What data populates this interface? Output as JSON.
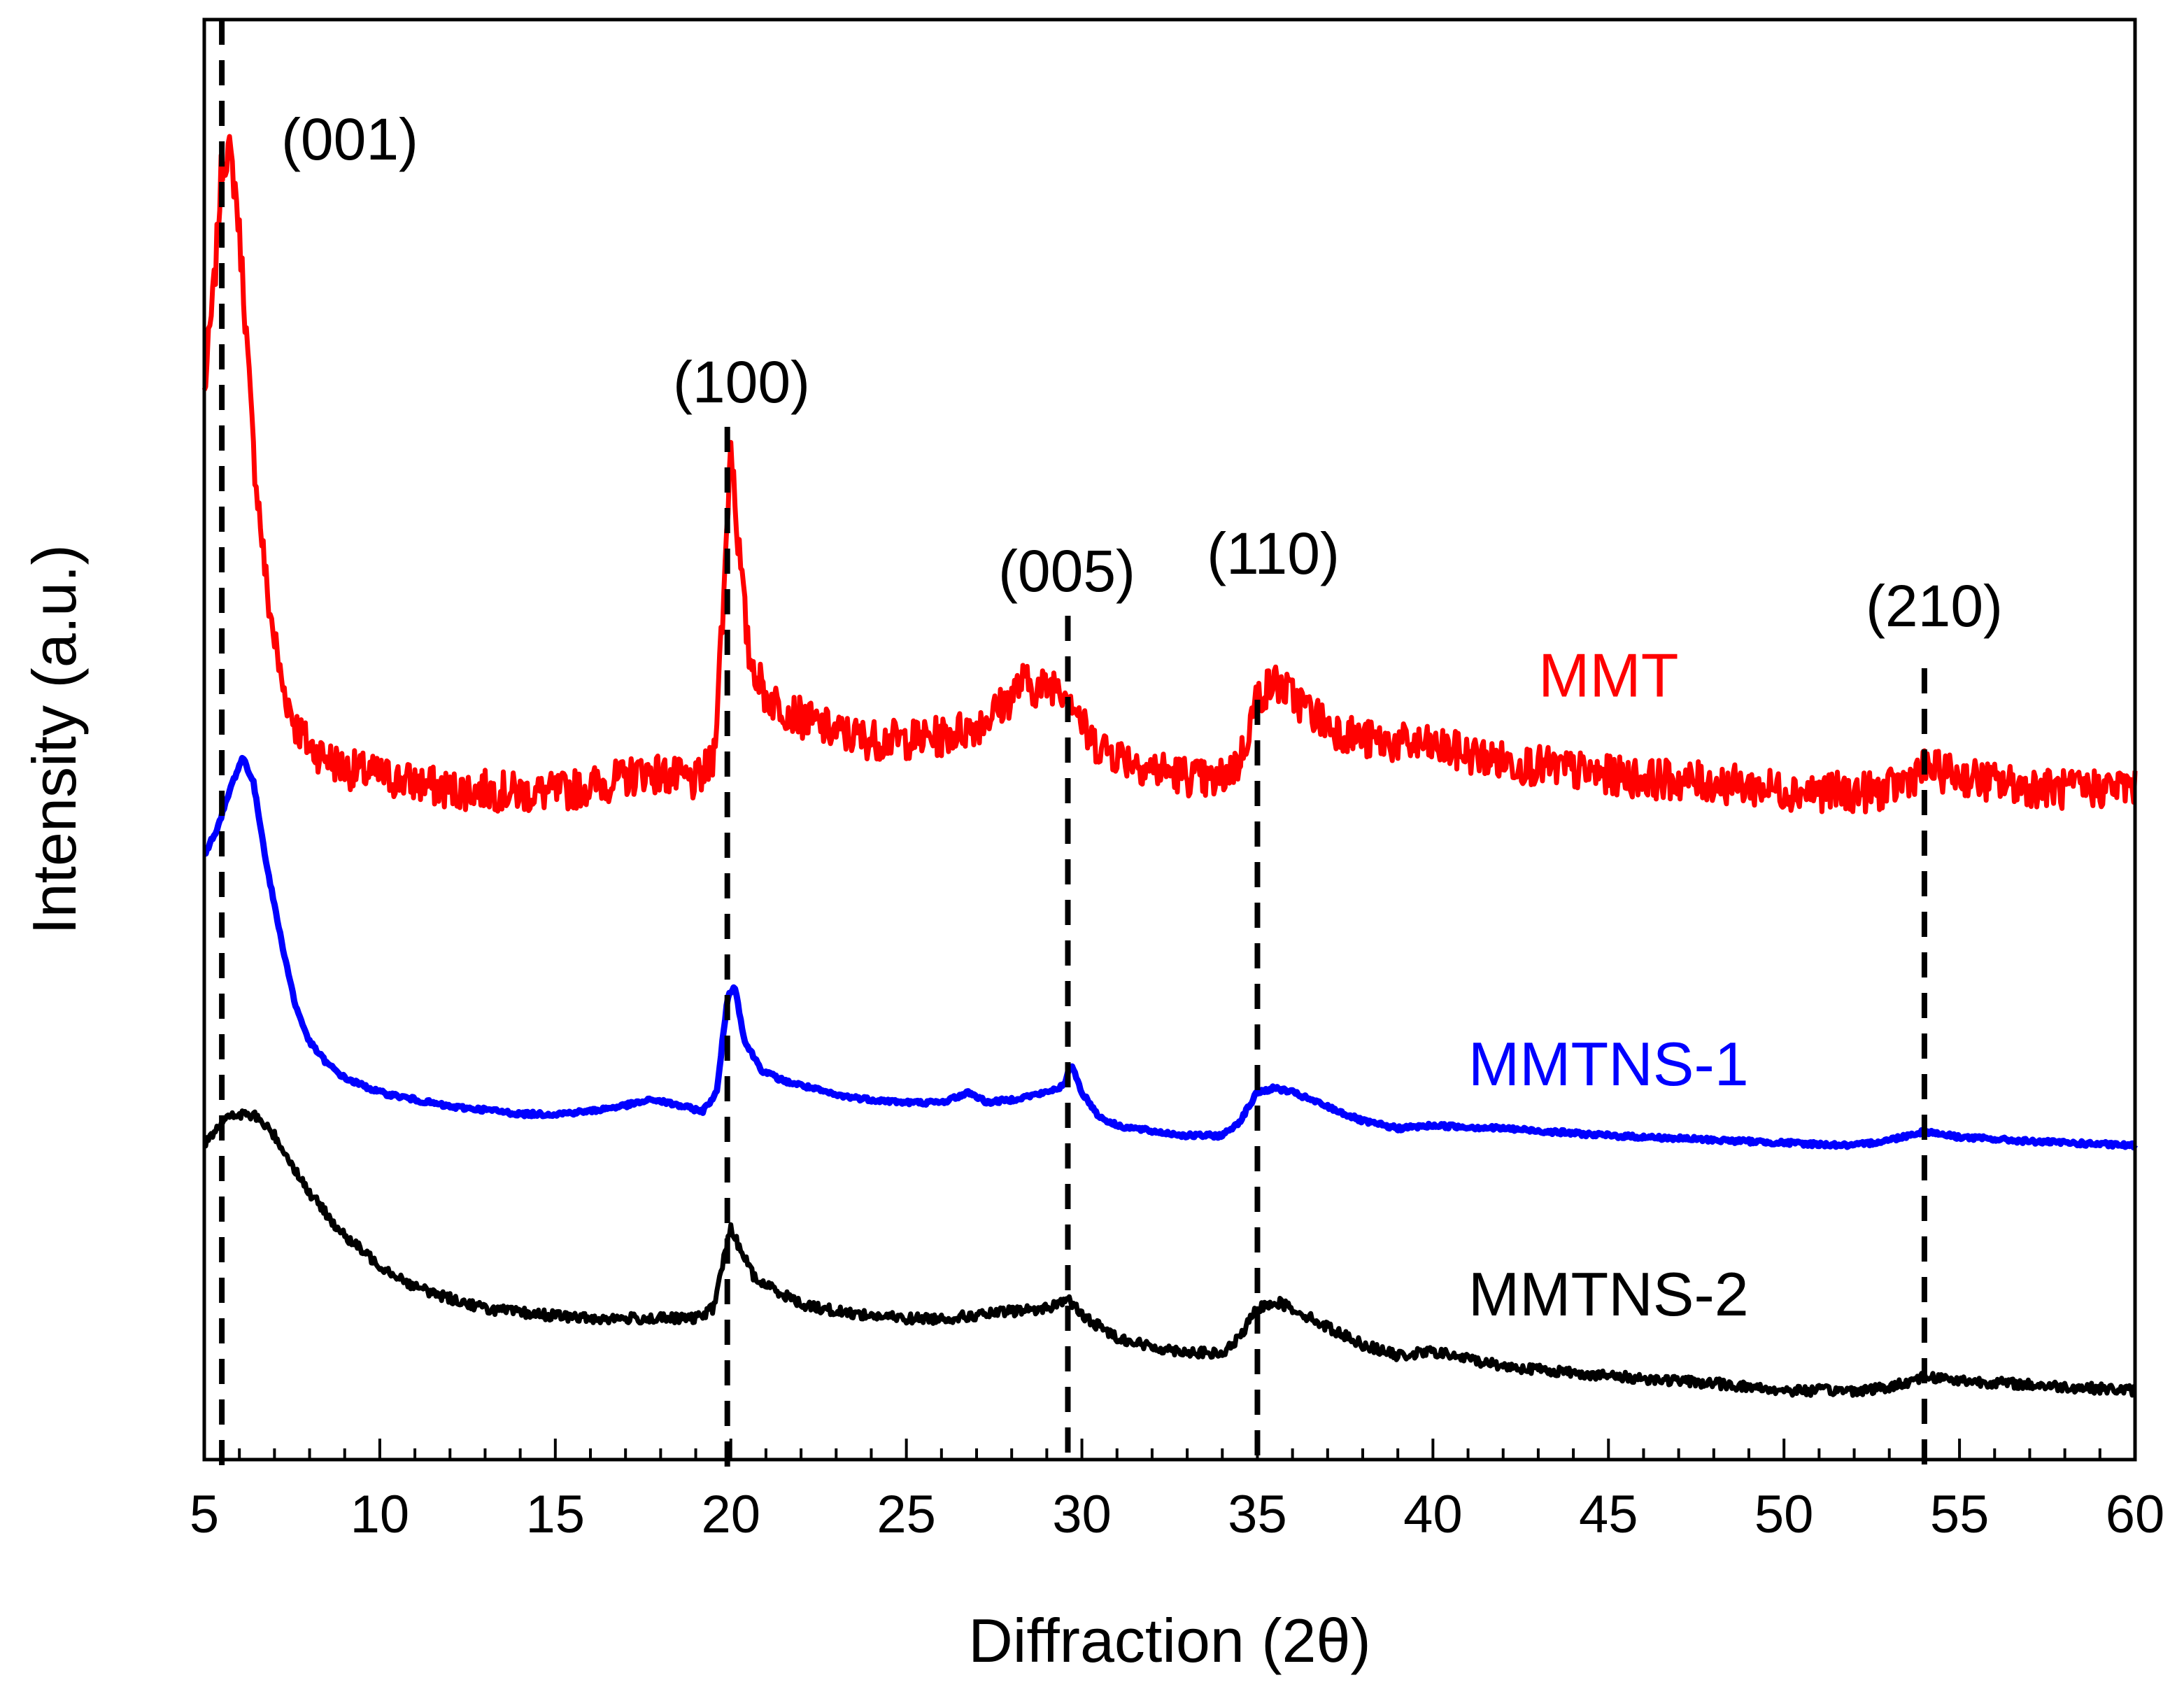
{
  "chart_data": {
    "type": "line",
    "xlabel": "Diffraction (2θ)",
    "ylabel": "Intensity (a.u.)",
    "xlim": [
      5,
      60
    ],
    "ylim": [
      0,
      100
    ],
    "y_ticks_shown": false,
    "x_major_ticks": [
      5,
      10,
      15,
      20,
      25,
      30,
      35,
      40,
      45,
      50,
      55,
      60
    ],
    "x_tick_labels": [
      "5",
      "10",
      "15",
      "20",
      "25",
      "30",
      "35",
      "40",
      "45",
      "50",
      "55",
      "60"
    ],
    "x_minor_step": 1,
    "grid": false,
    "series": [
      {
        "name": "MMT",
        "color": "#ff0000",
        "label_at": [
          45,
          53
        ],
        "points": [
          [
            5,
            74
          ],
          [
            5.3,
            82
          ],
          [
            5.5,
            90
          ],
          [
            5.7,
            91
          ],
          [
            5.9,
            88
          ],
          [
            6.1,
            82
          ],
          [
            6.4,
            70
          ],
          [
            6.8,
            60
          ],
          [
            7.2,
            54
          ],
          [
            7.6,
            51
          ],
          [
            8,
            49.5
          ],
          [
            9,
            48
          ],
          [
            10,
            47.5
          ],
          [
            11,
            47
          ],
          [
            12,
            46.5
          ],
          [
            13,
            46.5
          ],
          [
            14,
            46.3
          ],
          [
            15,
            46.3
          ],
          [
            16,
            46.8
          ],
          [
            17,
            47.3
          ],
          [
            17.5,
            47.8
          ],
          [
            18,
            47.6
          ],
          [
            19,
            47
          ],
          [
            19.5,
            48.5
          ],
          [
            19.8,
            60
          ],
          [
            20,
            71
          ],
          [
            20.2,
            64
          ],
          [
            20.5,
            56
          ],
          [
            21,
            53
          ],
          [
            22,
            51.5
          ],
          [
            23,
            50.5
          ],
          [
            24,
            50
          ],
          [
            25,
            50
          ],
          [
            26,
            50.2
          ],
          [
            27,
            51
          ],
          [
            27.8,
            52.5
          ],
          [
            28.3,
            54
          ],
          [
            28.8,
            53.5
          ],
          [
            29.3,
            54
          ],
          [
            29.7,
            53
          ],
          [
            30.2,
            50
          ],
          [
            31,
            49
          ],
          [
            32,
            48
          ],
          [
            33,
            47.5
          ],
          [
            33.8,
            47
          ],
          [
            34.5,
            48.5
          ],
          [
            35,
            53
          ],
          [
            35.5,
            54
          ],
          [
            36,
            53
          ],
          [
            37,
            51
          ],
          [
            38,
            50
          ],
          [
            40,
            49.5
          ],
          [
            42,
            48.5
          ],
          [
            45,
            47.5
          ],
          [
            48,
            47
          ],
          [
            50,
            46.5
          ],
          [
            52,
            46.3
          ],
          [
            53,
            46.5
          ],
          [
            54,
            48
          ],
          [
            55,
            47.5
          ],
          [
            56,
            47
          ],
          [
            58,
            46.5
          ],
          [
            60,
            46.8
          ]
        ]
      },
      {
        "name": "MMTNS-1",
        "color": "#0000ff",
        "label_at": [
          45,
          26
        ],
        "points": [
          [
            5,
            42
          ],
          [
            5.4,
            44
          ],
          [
            5.8,
            47
          ],
          [
            6.1,
            48.8
          ],
          [
            6.4,
            47
          ],
          [
            6.8,
            41
          ],
          [
            7.2,
            36
          ],
          [
            7.6,
            31.5
          ],
          [
            8,
            29
          ],
          [
            8.5,
            27.5
          ],
          [
            9,
            26.5
          ],
          [
            10,
            25.5
          ],
          [
            11,
            25
          ],
          [
            12,
            24.5
          ],
          [
            13,
            24.3
          ],
          [
            14,
            24
          ],
          [
            15,
            24
          ],
          [
            16,
            24.2
          ],
          [
            17,
            24.6
          ],
          [
            17.8,
            25
          ],
          [
            18.5,
            24.6
          ],
          [
            19.2,
            24.2
          ],
          [
            19.6,
            25.5
          ],
          [
            19.9,
            32
          ],
          [
            20.1,
            33
          ],
          [
            20.4,
            29
          ],
          [
            20.9,
            27
          ],
          [
            21.5,
            26.3
          ],
          [
            22,
            26
          ],
          [
            23,
            25.3
          ],
          [
            24,
            25
          ],
          [
            25,
            24.8
          ],
          [
            26,
            24.8
          ],
          [
            26.8,
            25.5
          ],
          [
            27.3,
            24.8
          ],
          [
            28,
            25
          ],
          [
            29,
            25.5
          ],
          [
            29.5,
            26
          ],
          [
            29.7,
            27.5
          ],
          [
            30,
            25.5
          ],
          [
            30.5,
            23.8
          ],
          [
            31,
            23.2
          ],
          [
            32,
            22.8
          ],
          [
            33,
            22.5
          ],
          [
            34,
            22.5
          ],
          [
            34.5,
            23.5
          ],
          [
            35,
            25.5
          ],
          [
            35.5,
            25.8
          ],
          [
            36,
            25.5
          ],
          [
            37,
            24.5
          ],
          [
            38,
            23.5
          ],
          [
            39,
            23
          ],
          [
            40,
            23.2
          ],
          [
            42,
            23
          ],
          [
            45,
            22.5
          ],
          [
            48,
            22.2
          ],
          [
            50,
            22
          ],
          [
            52,
            21.8
          ],
          [
            53,
            22.2
          ],
          [
            54,
            22.8
          ],
          [
            55,
            22.4
          ],
          [
            57,
            22.1
          ],
          [
            60,
            21.8
          ]
        ]
      },
      {
        "name": "MMTNS-2",
        "color": "#000000",
        "label_at": [
          45,
          10
        ],
        "points": [
          [
            5,
            22
          ],
          [
            5.5,
            23.5
          ],
          [
            6,
            24
          ],
          [
            6.5,
            23.8
          ],
          [
            7,
            22.5
          ],
          [
            7.5,
            20.5
          ],
          [
            8,
            18.5
          ],
          [
            8.5,
            17
          ],
          [
            9,
            15.5
          ],
          [
            10,
            13.5
          ],
          [
            11,
            12
          ],
          [
            12,
            11.2
          ],
          [
            13,
            10.5
          ],
          [
            14,
            10.2
          ],
          [
            15,
            10
          ],
          [
            16,
            9.8
          ],
          [
            17,
            9.8
          ],
          [
            18,
            9.8
          ],
          [
            19,
            9.8
          ],
          [
            19.5,
            10.5
          ],
          [
            19.8,
            14
          ],
          [
            20,
            16
          ],
          [
            20.3,
            14.5
          ],
          [
            20.7,
            12.5
          ],
          [
            21.5,
            11.5
          ],
          [
            22,
            10.8
          ],
          [
            23,
            10.3
          ],
          [
            24,
            10
          ],
          [
            25,
            9.8
          ],
          [
            26,
            9.8
          ],
          [
            27,
            10
          ],
          [
            28,
            10.3
          ],
          [
            29,
            10.5
          ],
          [
            29.6,
            11.2
          ],
          [
            30,
            10
          ],
          [
            31,
            8.5
          ],
          [
            32,
            7.8
          ],
          [
            33,
            7.5
          ],
          [
            34,
            7.3
          ],
          [
            34.5,
            8.5
          ],
          [
            35,
            10.5
          ],
          [
            35.5,
            11
          ],
          [
            36,
            10.5
          ],
          [
            37,
            9.2
          ],
          [
            38,
            8
          ],
          [
            39,
            7.2
          ],
          [
            40,
            7.5
          ],
          [
            42,
            6.5
          ],
          [
            45,
            5.8
          ],
          [
            48,
            5.3
          ],
          [
            50,
            4.8
          ],
          [
            52,
            4.8
          ],
          [
            53,
            5
          ],
          [
            54,
            5.8
          ],
          [
            55,
            5.5
          ],
          [
            57,
            5.2
          ],
          [
            60,
            4.8
          ]
        ]
      }
    ],
    "peaks": [
      {
        "label": "(001)",
        "x": 5.5
      },
      {
        "label": "(100)",
        "x": 19.9
      },
      {
        "label": "(005)",
        "x": 29.6
      },
      {
        "label": "(110)",
        "x": 35.0
      },
      {
        "label": "(210)",
        "x": 54.0
      }
    ]
  }
}
